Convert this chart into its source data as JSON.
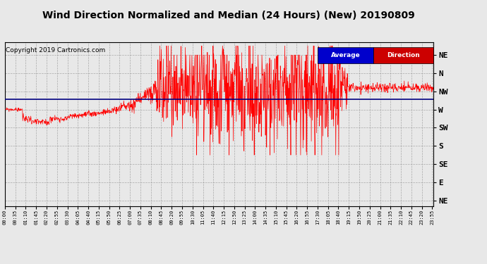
{
  "title": "Wind Direction Normalized and Median (24 Hours) (New) 20190809",
  "copyright": "Copyright 2019 Cartronics.com",
  "ytick_values": [
    8,
    7,
    6,
    5,
    4,
    3,
    2,
    1,
    0
  ],
  "ytick_labels": [
    "NE",
    "N",
    "NW",
    "W",
    "SW",
    "S",
    "SE",
    "E",
    "NE"
  ],
  "avg_line_y": 5.55,
  "background_color": "#e8e8e8",
  "plot_bg_color": "#e8e8e8",
  "grid_color": "#999999",
  "title_fontsize": 10,
  "copyright_fontsize": 6.5,
  "legend_bg_blue": "#0000cc",
  "legend_bg_red": "#cc0000",
  "legend_text_color": "#ffffff",
  "legend_label1": "Average",
  "legend_label2": "Direction",
  "n_points": 1440,
  "x_tick_interval": 35,
  "ylim_low": -0.3,
  "ylim_high": 8.7
}
